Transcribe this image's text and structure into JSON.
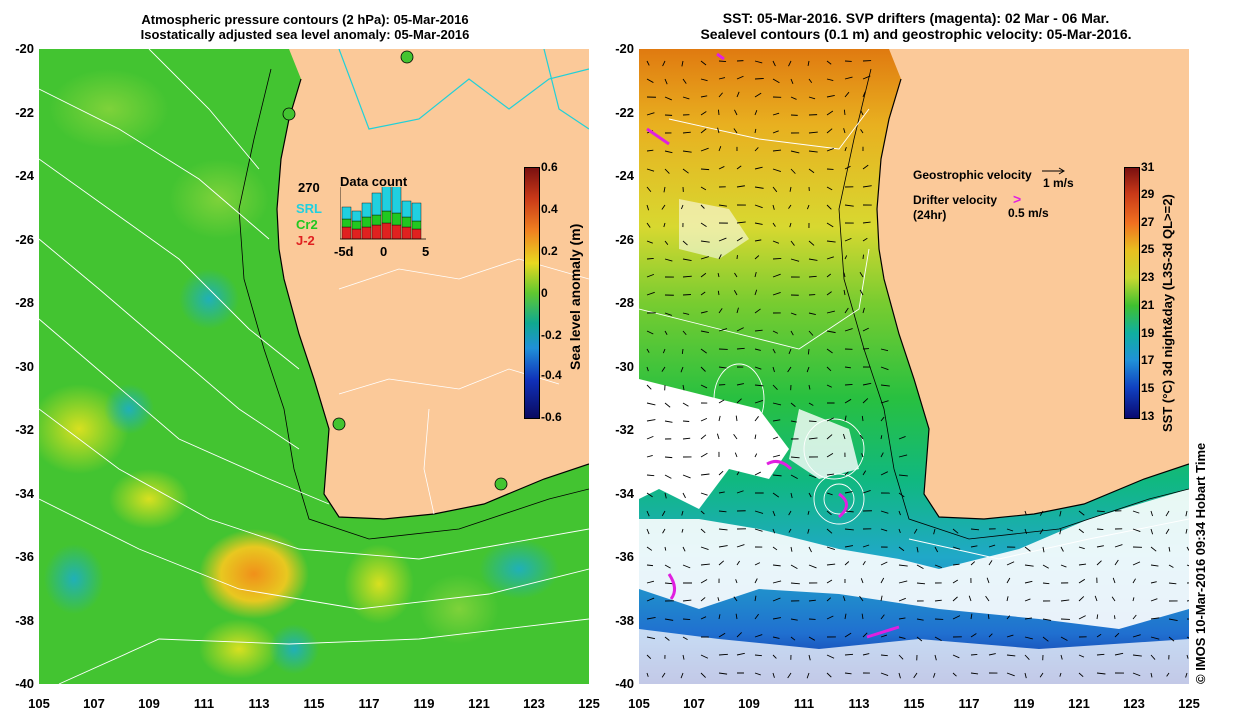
{
  "left_panel": {
    "title_line1": "Atmospheric pressure contours (2 hPa): 05-Mar-2016",
    "title_line2": "Isostatically adjusted sea level anomaly: 05-Mar-2016",
    "colorbar_label": "Sea level anomaly (m)",
    "colorbar_ticks": [
      "0.6",
      "0.4",
      "0.2",
      "0",
      "-0.2",
      "-0.4",
      "-0.6"
    ],
    "inset": {
      "title": "Data count",
      "max_count": "270",
      "legend": [
        "SRL",
        "Cr2",
        "J-2"
      ],
      "x_ticks": [
        "-5d",
        "0",
        "5"
      ]
    }
  },
  "right_panel": {
    "title_line1": "SST: 05-Mar-2016. SVP drifters (magenta): 02 Mar - 06 Mar.",
    "title_line2": "Sealevel contours (0.1 m) and geostrophic velocity: 05-Mar-2016.",
    "colorbar_label": "SST (°C) 3d night&day (L3S-3d QL>=2)",
    "colorbar_ticks": [
      "31",
      "29",
      "27",
      "25",
      "23",
      "21",
      "19",
      "17",
      "15",
      "13"
    ],
    "legend": {
      "geostrophic_label": "Geostrophic velocity",
      "geostrophic_scale": "1 m/s",
      "drifter_label_1": "Drifter velocity",
      "drifter_label_2": "(24hr)",
      "drifter_scale": "0.5 m/s"
    }
  },
  "axes": {
    "y_ticks": [
      "-20",
      "-22",
      "-24",
      "-26",
      "-28",
      "-30",
      "-32",
      "-34",
      "-36",
      "-38",
      "-40"
    ],
    "x_ticks": [
      "105",
      "107",
      "109",
      "111",
      "113",
      "115",
      "117",
      "119",
      "121",
      "123",
      "125"
    ]
  },
  "credit": "© IMOS 10-Mar-2016 09:34 Hobart Time",
  "colors": {
    "land": "#fbc999",
    "ocean_green": "#43c431",
    "coastline": "#000000",
    "drifter": "#e020e0",
    "contour": "#ffffff"
  }
}
